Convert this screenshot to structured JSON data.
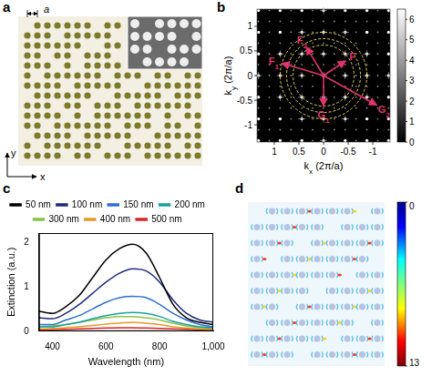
{
  "panels": {
    "a": {
      "letter": "a",
      "period_label": "a",
      "axis_labels": [
        "x",
        "y"
      ]
    },
    "b": {
      "letter": "b",
      "xlabel": {
        "text": "k",
        "sub": "x",
        "rest": " (2π/a)"
      },
      "ylabel": {
        "text": "k",
        "sub": "y",
        "rest": " (2π/a)"
      },
      "xlim": [
        1.35,
        -1.35
      ],
      "ylim": [
        -1.35,
        1.35
      ],
      "xticks": [
        1,
        0.5,
        0,
        -0.5,
        -1
      ],
      "yticks": [
        1,
        0.5,
        0,
        -0.5,
        -1
      ],
      "colorbar": {
        "range": [
          0,
          6.5
        ],
        "ticks": [
          0,
          1,
          2,
          3,
          4,
          5,
          6
        ]
      },
      "vectors": [
        {
          "label": {
            "text": "F",
            "sub": "1"
          },
          "kx": 0.85,
          "ky": 0.25
        },
        {
          "label": {
            "text": "F",
            "sub": "2"
          },
          "kx": 0.35,
          "ky": 0.58
        },
        {
          "label": {
            "text": "F",
            "sub": ""
          },
          "kx": -0.45,
          "ky": 0.3
        },
        {
          "label": {
            "text": "G",
            "sub": "1"
          },
          "kx": 0,
          "ky": -0.62
        },
        {
          "label": {
            "text": "G",
            "sub": "2"
          },
          "kx": -1.08,
          "ky": -0.6
        }
      ]
    },
    "d": {
      "letter": "d",
      "colorbar": {
        "range": [
          0,
          13
        ],
        "ticks": [
          0,
          13
        ]
      }
    }
  },
  "chart_data": {
    "type": "line",
    "letter": "c",
    "xlabel": "Wavelength (nm)",
    "ylabel": "Extinction (a.u.)",
    "x": [
      350,
      400,
      450,
      500,
      550,
      600,
      650,
      700,
      750,
      800,
      850,
      900,
      950,
      1000
    ],
    "series": [
      {
        "name": "50 nm",
        "color": "#000000",
        "values": [
          0.45,
          0.4,
          0.55,
          0.8,
          1.2,
          1.6,
          1.85,
          1.95,
          1.75,
          1.2,
          0.6,
          0.3,
          0.2,
          0.15
        ]
      },
      {
        "name": "100 nm",
        "color": "#1f2a7a",
        "values": [
          0.3,
          0.28,
          0.4,
          0.6,
          0.85,
          1.1,
          1.3,
          1.4,
          1.35,
          1.1,
          0.7,
          0.4,
          0.25,
          0.2
        ]
      },
      {
        "name": "150 nm",
        "color": "#2f6fd0",
        "values": [
          0.15,
          0.15,
          0.25,
          0.35,
          0.5,
          0.65,
          0.75,
          0.78,
          0.75,
          0.6,
          0.4,
          0.25,
          0.15,
          0.1
        ]
      },
      {
        "name": "200 nm",
        "color": "#1aa0a0",
        "values": [
          0.1,
          0.1,
          0.15,
          0.2,
          0.28,
          0.35,
          0.4,
          0.42,
          0.4,
          0.33,
          0.22,
          0.15,
          0.1,
          0.08
        ]
      },
      {
        "name": "300 nm",
        "color": "#8bc34a",
        "values": [
          0.1,
          0.12,
          0.15,
          0.2,
          0.25,
          0.3,
          0.33,
          0.33,
          0.3,
          0.25,
          0.18,
          0.12,
          0.08,
          0.06
        ]
      },
      {
        "name": "400 nm",
        "color": "#e69a2a",
        "values": [
          0.05,
          0.06,
          0.08,
          0.1,
          0.13,
          0.16,
          0.18,
          0.2,
          0.18,
          0.15,
          0.1,
          0.07,
          0.05,
          0.04
        ]
      },
      {
        "name": "500 nm",
        "color": "#d62728",
        "values": [
          0.02,
          0.03,
          0.04,
          0.05,
          0.06,
          0.07,
          0.08,
          0.08,
          0.07,
          0.06,
          0.05,
          0.04,
          0.03,
          0.03
        ]
      }
    ],
    "xlim": [
      350,
      1000
    ],
    "xticks": [
      400,
      600,
      800,
      {
        "value": 1000,
        "label": "1,000"
      }
    ],
    "ylim": [
      0,
      2.2
    ],
    "yticks": [
      0,
      1,
      2
    ],
    "grid": false,
    "legend": "top"
  }
}
